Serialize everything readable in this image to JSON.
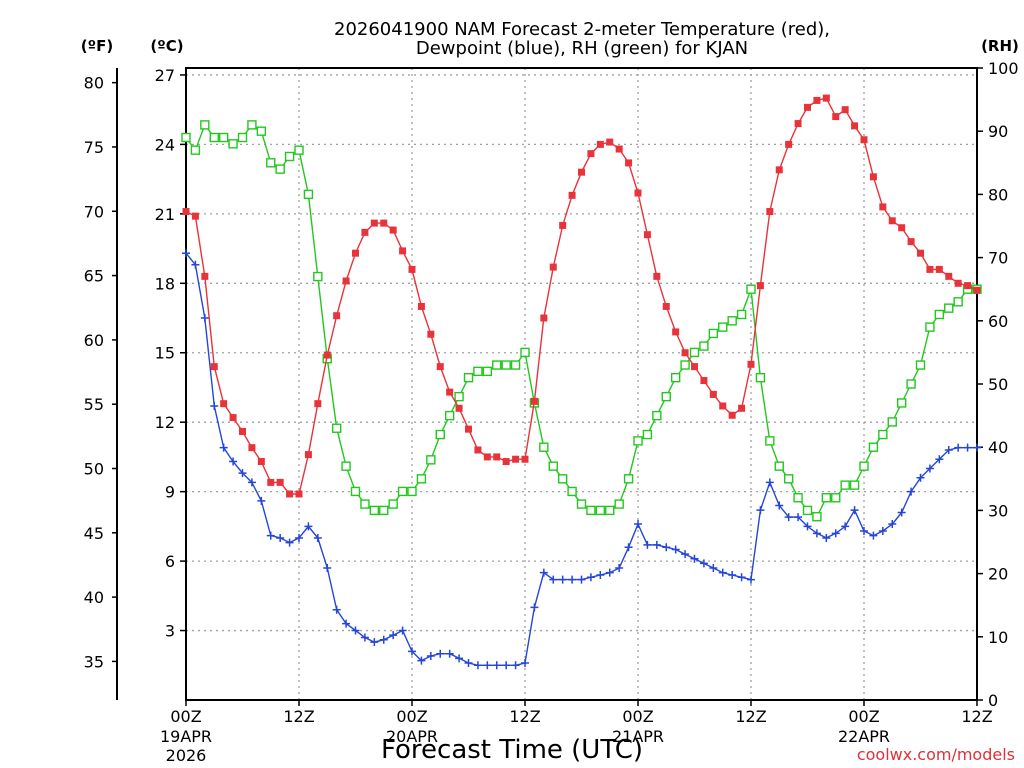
{
  "title_line1": "2026041900 NAM Forecast 2-meter Temperature (red),",
  "title_line2": "Dewpoint (blue), RH (green) for KJAN",
  "units": {
    "fahrenheit": "(ºF)",
    "celsius": "(ºC)",
    "rh": "(RH)"
  },
  "xlabel": "Forecast Time (UTC)",
  "credit": "coolwx.com/models",
  "colors": {
    "temperature": "#e8333a",
    "dewpoint": "#2546d8",
    "rh": "#22c81e",
    "grid": "#a0a0a0"
  },
  "chart_data": {
    "type": "line",
    "title": "2026041900 NAM Forecast 2-meter Temperature (red), Dewpoint (blue), RH (green) for KJAN",
    "xlabel": "Forecast Time (UTC)",
    "x_unit": "forecast hour",
    "xlim": [
      0,
      84
    ],
    "x_ticks": [
      {
        "hour": 0,
        "label": "00Z",
        "date": "19APR",
        "year": "2026"
      },
      {
        "hour": 12,
        "label": "12Z"
      },
      {
        "hour": 24,
        "label": "00Z",
        "date": "20APR"
      },
      {
        "hour": 36,
        "label": "12Z"
      },
      {
        "hour": 48,
        "label": "00Z",
        "date": "21APR"
      },
      {
        "hour": 60,
        "label": "12Z"
      },
      {
        "hour": 72,
        "label": "00Z",
        "date": "22APR"
      },
      {
        "hour": 84,
        "label": "12Z"
      }
    ],
    "y_left_celsius": {
      "label": "(ºC)",
      "range": [
        0,
        27.3
      ],
      "ticks": [
        3,
        6,
        9,
        12,
        15,
        18,
        21,
        24,
        27
      ]
    },
    "y_left_fahrenheit": {
      "label": "(ºF)",
      "ticks": [
        35,
        40,
        45,
        50,
        55,
        60,
        65,
        70,
        75,
        80
      ]
    },
    "y_right_rh": {
      "label": "(RH)",
      "range": [
        0,
        100
      ],
      "ticks": [
        0,
        10,
        20,
        30,
        40,
        50,
        60,
        70,
        80,
        90,
        100
      ]
    },
    "grid": true,
    "series": [
      {
        "name": "2-meter Temperature",
        "unit": "ºC",
        "axis": "celsius",
        "marker": "filled-square",
        "values": [
          21.1,
          20.9,
          18.3,
          14.4,
          12.8,
          12.2,
          11.6,
          10.9,
          10.3,
          9.4,
          9.4,
          8.9,
          8.9,
          10.6,
          12.8,
          14.9,
          16.6,
          18.1,
          19.3,
          20.2,
          20.6,
          20.6,
          20.3,
          19.4,
          18.6,
          17.0,
          15.8,
          14.4,
          13.3,
          12.6,
          11.7,
          10.8,
          10.5,
          10.5,
          10.3,
          10.4,
          10.4,
          12.9,
          16.5,
          18.7,
          20.5,
          21.8,
          22.8,
          23.6,
          24.0,
          24.1,
          23.8,
          23.2,
          21.9,
          20.1,
          18.3,
          17.0,
          15.9,
          15.0,
          14.4,
          13.8,
          13.2,
          12.7,
          12.3,
          12.6,
          14.5,
          17.9,
          21.1,
          22.9,
          24.0,
          24.9,
          25.6,
          25.9,
          26.0,
          25.2,
          25.5,
          24.8,
          24.2,
          22.6,
          21.3,
          20.7,
          20.4,
          19.8,
          19.3,
          18.6,
          18.6,
          18.3,
          18.0,
          17.9,
          17.7
        ]
      },
      {
        "name": "Dewpoint",
        "unit": "ºC",
        "axis": "celsius",
        "marker": "plus",
        "values": [
          19.3,
          18.8,
          16.5,
          12.7,
          10.9,
          10.3,
          9.8,
          9.4,
          8.6,
          7.1,
          7.0,
          6.8,
          7.0,
          7.5,
          7.0,
          5.7,
          3.9,
          3.3,
          3.0,
          2.7,
          2.5,
          2.6,
          2.8,
          3.0,
          2.1,
          1.7,
          1.9,
          2.0,
          2.0,
          1.8,
          1.6,
          1.5,
          1.5,
          1.5,
          1.5,
          1.5,
          1.6,
          4.0,
          5.5,
          5.2,
          5.2,
          5.2,
          5.2,
          5.3,
          5.4,
          5.5,
          5.7,
          6.6,
          7.6,
          6.7,
          6.7,
          6.6,
          6.5,
          6.3,
          6.1,
          5.9,
          5.7,
          5.5,
          5.4,
          5.3,
          5.2,
          8.2,
          9.4,
          8.4,
          7.9,
          7.9,
          7.5,
          7.2,
          7.0,
          7.2,
          7.5,
          8.2,
          7.3,
          7.1,
          7.3,
          7.6,
          8.1,
          9.0,
          9.6,
          10.0,
          10.4,
          10.8,
          10.9,
          10.9,
          10.9
        ]
      },
      {
        "name": "RH",
        "unit": "%",
        "axis": "rh",
        "marker": "open-square",
        "values": [
          89,
          87,
          91,
          89,
          89,
          88,
          89,
          91,
          90,
          85,
          84,
          86,
          87,
          80,
          67,
          54,
          43,
          37,
          33,
          31,
          30,
          30,
          31,
          33,
          33,
          35,
          38,
          42,
          45,
          48,
          51,
          52,
          52,
          53,
          53,
          53,
          55,
          47,
          40,
          37,
          35,
          33,
          31,
          30,
          30,
          30,
          31,
          35,
          41,
          42,
          45,
          48,
          51,
          53,
          55,
          56,
          58,
          59,
          60,
          61,
          65,
          51,
          41,
          37,
          35,
          32,
          30,
          29,
          32,
          32,
          34,
          34,
          37,
          40,
          42,
          44,
          47,
          50,
          53,
          59,
          61,
          62,
          63,
          65,
          65
        ]
      }
    ]
  }
}
